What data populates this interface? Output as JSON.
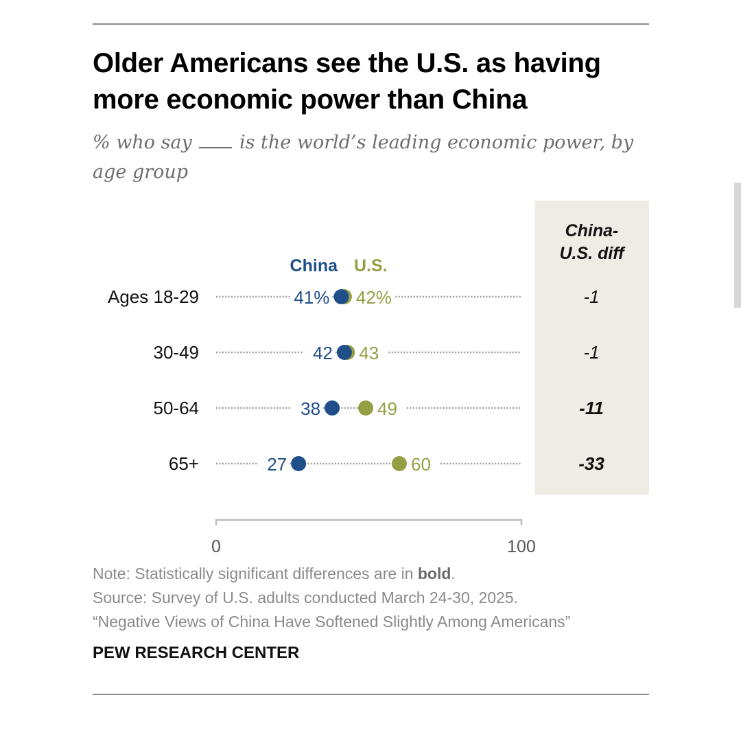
{
  "header": {
    "title": "Older Americans see the U.S. as having more economic power than China",
    "subtitle_before": "% who say",
    "subtitle_after": "is the world’s leading economic power, by age group"
  },
  "diff_column": {
    "header_line1": "China-",
    "header_line2": "U.S. diff"
  },
  "footer": {
    "note_prefix": "Note: Statistically significant differences are in ",
    "note_bold": "bold",
    "note_suffix": ".",
    "source": "Source: Survey of U.S. adults conducted March 24-30, 2025.",
    "report": "“Negative Views of China Have Softened Slightly Among Americans”",
    "brand": "PEW RESEARCH CENTER"
  },
  "colors": {
    "china": "#1f4e89",
    "us": "#949f44",
    "dots": "#9a9a9a",
    "axis": "#bdbdbd",
    "diff_bg": "#efece5"
  },
  "chart_data": {
    "type": "scatter",
    "subtype": "dot-plot",
    "title": "Older Americans see the U.S. as having more economic power than China",
    "subtitle": "% who say ___ is the world’s leading economic power, by age group",
    "categories": [
      "Ages 18-29",
      "30-49",
      "50-64",
      "65+"
    ],
    "series": [
      {
        "name": "China",
        "values": [
          41,
          42,
          38,
          27
        ],
        "labels": [
          "41%",
          "42",
          "38",
          "27"
        ]
      },
      {
        "name": "U.S.",
        "values": [
          42,
          43,
          49,
          60
        ],
        "labels": [
          "42%",
          "43",
          "49",
          "60"
        ]
      }
    ],
    "diff": {
      "name": "China-U.S. diff",
      "values": [
        -1,
        -1,
        -11,
        -33
      ],
      "labels": [
        "-1",
        "-1",
        "-11",
        "-33"
      ],
      "significant": [
        false,
        false,
        true,
        true
      ]
    },
    "xlim": [
      0,
      100
    ],
    "xticks": [
      "0",
      "100"
    ],
    "xlabel": "",
    "ylabel": "",
    "legend": "top-center",
    "grid": false
  }
}
